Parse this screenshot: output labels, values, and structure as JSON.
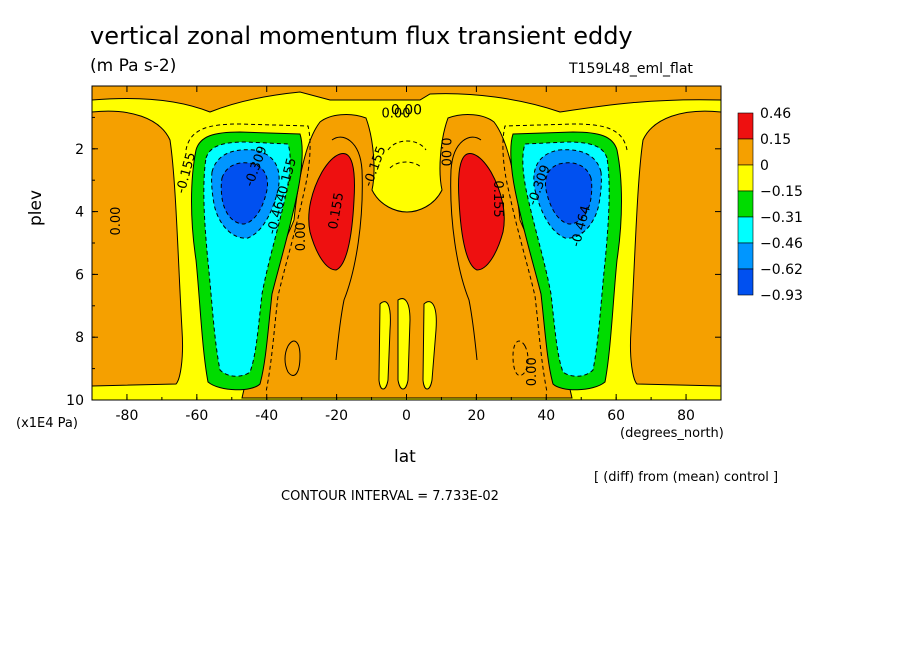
{
  "chart_data": {
    "type": "heatmap",
    "title": "vertical zonal momentum flux transient eddy",
    "units": "(m Pa s-2)",
    "run_name": "T159L48_eml_flat",
    "xlabel": "lat",
    "x_units": "(degrees_north)",
    "ylabel": "plev",
    "y_units": "(x1E4 Pa)",
    "xlim": [
      -90,
      90
    ],
    "ylim": [
      10,
      0
    ],
    "x_ticks": [
      "-80",
      "-60",
      "-40",
      "-20",
      "0",
      "20",
      "40",
      "60",
      "80"
    ],
    "y_ticks": [
      "2",
      "4",
      "6",
      "8",
      "10"
    ],
    "note": "[ (diff) from (mean) control ]",
    "contour_interval": "CONTOUR INTERVAL = 7.733E-02",
    "legend": {
      "labels": [
        "0.46",
        "0.15",
        "0",
        "−0.15",
        "−0.31",
        "−0.46",
        "−0.62",
        "−0.93"
      ],
      "colors": [
        "#ee1010",
        "#f5a000",
        "#ffff00",
        "#00dc00",
        "#00ffff",
        "#0096ff",
        "#0050f0"
      ]
    },
    "contour_labels": [
      "0.00",
      "0.00",
      "0.00",
      "0.00",
      "0.00",
      "0.155",
      "0.155",
      "0.155",
      "-0.155",
      "-0.155",
      "-0.309",
      "-0.309",
      "-0.464",
      "-0.464"
    ],
    "regions": [
      {
        "feature": "positive maximum",
        "lat": -23,
        "plev": 4.2,
        "value": 0.46
      },
      {
        "feature": "positive maximum",
        "lat": 23,
        "plev": 4.2,
        "value": 0.46
      },
      {
        "feature": "negative minimum",
        "lat": -45,
        "plev": 3.7,
        "value": -0.93
      },
      {
        "feature": "negative minimum",
        "lat": 45,
        "plev": 3.7,
        "value": -0.93
      }
    ]
  }
}
